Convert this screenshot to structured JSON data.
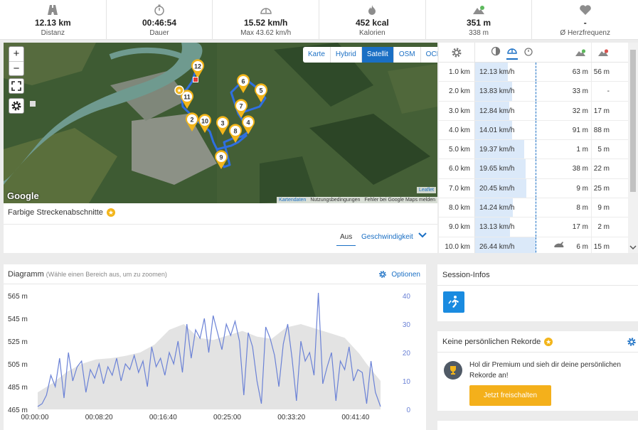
{
  "stats": [
    {
      "icon": "road-icon",
      "value": "12.13 km",
      "label": "Distanz"
    },
    {
      "icon": "stopwatch-icon",
      "value": "00:46:54",
      "label": "Dauer"
    },
    {
      "icon": "speedometer-icon",
      "value": "15.52 km/h",
      "label": "Max 43.62 km/h"
    },
    {
      "icon": "flame-icon",
      "value": "452 kcal",
      "label": "Kalorien"
    },
    {
      "icon": "elevation-up-icon",
      "value": "351 m",
      "label": "338 m"
    },
    {
      "icon": "heart-icon",
      "value": "-",
      "label": "Ø Herzfrequenz"
    }
  ],
  "map": {
    "zoom_in": "+",
    "zoom_out": "−",
    "types": [
      "Karte",
      "Hybrid",
      "Satellit",
      "OSM",
      "OCM"
    ],
    "active_type": "Satellit",
    "logo": "Google",
    "leaflet": "Leaflet",
    "attribution": [
      "Kartendaten",
      "Nutzungsbedingungen",
      "Fehler bei Google Maps melden"
    ],
    "markers": [
      "12",
      "11",
      "2",
      "10",
      "3",
      "9",
      "8",
      "4",
      "7",
      "6",
      "5"
    ]
  },
  "segments": {
    "title": "Farbige Streckenabschnitte",
    "tab_off": "Aus",
    "tab_speed": "Geschwindigkeit"
  },
  "splits": {
    "rows": [
      {
        "km": "1.0 km",
        "speed": "12.13 km/h",
        "speed_frac": 0.6,
        "up": "63 m",
        "down": "56 m",
        "icon": ""
      },
      {
        "km": "2.0 km",
        "speed": "13.83 km/h",
        "speed_frac": 0.68,
        "up": "33 m",
        "down": "-",
        "icon": ""
      },
      {
        "km": "3.0 km",
        "speed": "12.84 km/h",
        "speed_frac": 0.63,
        "up": "32 m",
        "down": "17 m",
        "icon": ""
      },
      {
        "km": "4.0 km",
        "speed": "14.01 km/h",
        "speed_frac": 0.69,
        "up": "91 m",
        "down": "88 m",
        "icon": ""
      },
      {
        "km": "5.0 km",
        "speed": "19.37 km/h",
        "speed_frac": 0.91,
        "up": "1 m",
        "down": "5 m",
        "icon": ""
      },
      {
        "km": "6.0 km",
        "speed": "19.65 km/h",
        "speed_frac": 0.93,
        "up": "38 m",
        "down": "22 m",
        "icon": ""
      },
      {
        "km": "7.0 km",
        "speed": "20.45 km/h",
        "speed_frac": 0.95,
        "up": "9 m",
        "down": "25 m",
        "icon": ""
      },
      {
        "km": "8.0 km",
        "speed": "14.24 km/h",
        "speed_frac": 0.7,
        "up": "8 m",
        "down": "9 m",
        "icon": ""
      },
      {
        "km": "9.0 km",
        "speed": "13.13 km/h",
        "speed_frac": 0.65,
        "up": "17 m",
        "down": "2 m",
        "icon": ""
      },
      {
        "km": "10.0 km",
        "speed": "26.44 km/h",
        "speed_frac": 1.12,
        "up": "6 m",
        "down": "15 m",
        "icon": "rabbit-icon"
      }
    ]
  },
  "diagram": {
    "title": "Diagramm",
    "hint": "(Wähle einen Bereich aus, um zu zoomen)",
    "options": "Optionen"
  },
  "chart_data": {
    "type": "area",
    "x_ticks": [
      "00:00:00",
      "00:08:20",
      "00:16:40",
      "00:25:00",
      "00:33:20",
      "00:41:40"
    ],
    "y_left_ticks": [
      "565 m",
      "545 m",
      "525 m",
      "505 m",
      "485 m",
      "465 m"
    ],
    "y_left_lim": [
      465,
      565
    ],
    "y_right_ticks": [
      "40",
      "30",
      "20",
      "10",
      "0"
    ],
    "y_right_lim": [
      0,
      40
    ],
    "duration_min": 46.9,
    "series": [
      {
        "axis": "left",
        "color": "#e3e3e3",
        "x": [
          0,
          2,
          4,
          6,
          8,
          10,
          12,
          14,
          16,
          18,
          20,
          22,
          24,
          26,
          28,
          30,
          32,
          34,
          36,
          38,
          40,
          42,
          44,
          45,
          46.9
        ],
        "y": [
          480,
          488,
          498,
          505,
          509,
          510,
          512,
          515,
          522,
          535,
          540,
          528,
          526,
          530,
          534,
          529,
          527,
          537,
          540,
          536,
          532,
          528,
          514,
          505,
          490
        ]
      },
      {
        "axis": "right",
        "color": "#6b82d6",
        "x": [
          0,
          0.6,
          1.2,
          1.8,
          2.4,
          3,
          3.6,
          4.2,
          4.8,
          5.4,
          6,
          6.6,
          7.2,
          7.8,
          8.4,
          9,
          9.6,
          10.2,
          10.8,
          11.4,
          12,
          12.6,
          13.2,
          13.8,
          14.4,
          15,
          15.6,
          16.2,
          16.8,
          17.4,
          18,
          18.6,
          19.2,
          19.8,
          20.4,
          21,
          21.6,
          22.2,
          22.8,
          23.4,
          24,
          24.6,
          25.2,
          25.8,
          26.4,
          27,
          27.6,
          28.2,
          28.8,
          29.4,
          30,
          30.6,
          31.2,
          31.8,
          32.4,
          33,
          33.6,
          34.2,
          34.8,
          35.4,
          36,
          36.6,
          37.2,
          37.8,
          38.4,
          39,
          39.6,
          40.2,
          40.8,
          41.4,
          42,
          42.6,
          43.2,
          43.8,
          44.4,
          45,
          45.6,
          46.2,
          46.9
        ],
        "y": [
          1,
          2,
          5,
          12,
          8,
          18,
          4,
          20,
          10,
          15,
          17,
          6,
          14,
          11,
          16,
          9,
          15,
          12,
          18,
          10,
          16,
          14,
          19,
          13,
          17,
          8,
          22,
          15,
          18,
          12,
          20,
          16,
          24,
          13,
          30,
          18,
          28,
          25,
          32,
          20,
          33,
          27,
          21,
          30,
          26,
          31,
          24,
          5,
          27,
          22,
          10,
          2,
          29,
          25,
          19,
          8,
          23,
          30,
          18,
          3,
          24,
          17,
          20,
          12,
          41,
          9,
          15,
          20,
          3,
          17,
          14,
          22,
          10,
          14,
          13,
          2,
          17,
          6,
          1
        ]
      }
    ]
  },
  "session": {
    "title": "Session-Infos",
    "app_icon": "running-icon"
  },
  "records": {
    "title": "Keine persönlichen Rekorde",
    "message": "Hol dir Premium und sieh dir deine persönlichen Rekorde an!",
    "button": "Jetzt freischalten"
  }
}
